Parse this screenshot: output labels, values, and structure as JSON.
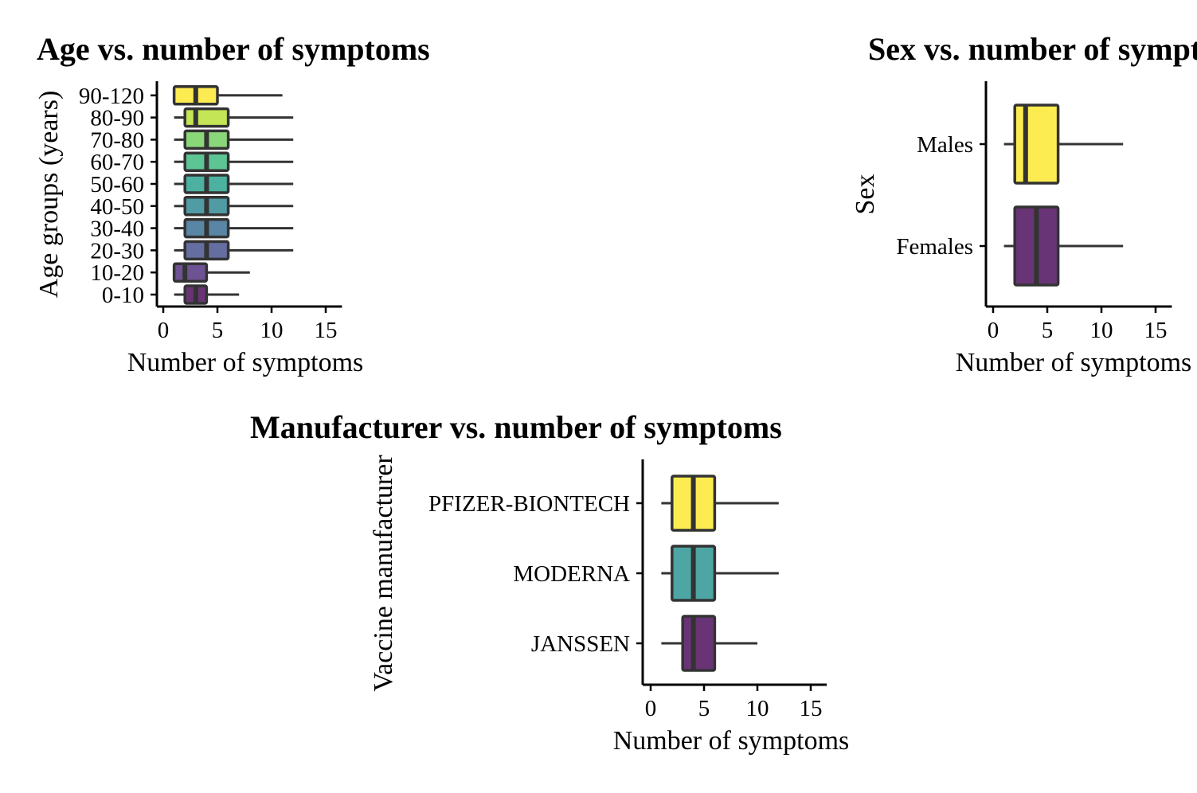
{
  "chart_data": [
    {
      "type": "boxplot",
      "orientation": "horizontal",
      "title": "Age vs. number of symptoms",
      "xlabel": "Number of symptoms",
      "ylabel": "Age groups (years)",
      "xlim": [
        -0.8,
        16.5
      ],
      "xticks": [
        0,
        5,
        10,
        15
      ],
      "categories": [
        "0-10",
        "10-20",
        "20-30",
        "30-40",
        "40-50",
        "50-60",
        "60-70",
        "70-80",
        "80-90",
        "90-120"
      ],
      "boxes": [
        {
          "min": 1,
          "q1": 2,
          "median": 3,
          "q3": 4,
          "max": 7,
          "fill": "#440154"
        },
        {
          "min": 1,
          "q1": 1,
          "median": 2,
          "q3": 4,
          "max": 8,
          "fill": "#482878"
        },
        {
          "min": 1,
          "q1": 2,
          "median": 4,
          "q3": 6,
          "max": 12,
          "fill": "#3E4A89"
        },
        {
          "min": 1,
          "q1": 2,
          "median": 4,
          "q3": 6,
          "max": 12,
          "fill": "#31688E"
        },
        {
          "min": 1,
          "q1": 2,
          "median": 4,
          "q3": 6,
          "max": 12,
          "fill": "#26828E"
        },
        {
          "min": 1,
          "q1": 2,
          "median": 4,
          "q3": 6,
          "max": 12,
          "fill": "#1F9E89"
        },
        {
          "min": 1,
          "q1": 2,
          "median": 4,
          "q3": 6,
          "max": 12,
          "fill": "#35B779"
        },
        {
          "min": 1,
          "q1": 2,
          "median": 4,
          "q3": 6,
          "max": 12,
          "fill": "#6DCD59"
        },
        {
          "min": 1,
          "q1": 2,
          "median": 3,
          "q3": 6,
          "max": 12,
          "fill": "#B4DE2C"
        },
        {
          "min": 1,
          "q1": 1,
          "median": 3,
          "q3": 5,
          "max": 11,
          "fill": "#FDE725"
        }
      ],
      "fill_opacity": 0.8
    },
    {
      "type": "boxplot",
      "orientation": "horizontal",
      "title": "Sex vs. number of symptoms",
      "xlabel": "Number of symptoms",
      "ylabel": "Sex",
      "xlim": [
        -0.8,
        16.5
      ],
      "xticks": [
        0,
        5,
        10,
        15
      ],
      "categories": [
        "Females",
        "Males"
      ],
      "boxes": [
        {
          "min": 1,
          "q1": 2,
          "median": 4,
          "q3": 6,
          "max": 12,
          "fill": "#440154"
        },
        {
          "min": 1,
          "q1": 2,
          "median": 3,
          "q3": 6,
          "max": 12,
          "fill": "#FDE725"
        }
      ],
      "fill_opacity": 0.8
    },
    {
      "type": "boxplot",
      "orientation": "horizontal",
      "title": "Manufacturer vs. number of symptoms",
      "xlabel": "Number of symptoms",
      "ylabel": "Vaccine manufacturer",
      "xlim": [
        -0.8,
        16.5
      ],
      "xticks": [
        0,
        5,
        10,
        15
      ],
      "categories": [
        "JANSSEN",
        "MODERNA",
        "PFIZER-BIONTECH"
      ],
      "boxes": [
        {
          "min": 1,
          "q1": 3,
          "median": 4,
          "q3": 6,
          "max": 10,
          "fill": "#440154"
        },
        {
          "min": 1,
          "q1": 2,
          "median": 4,
          "q3": 6,
          "max": 12,
          "fill": "#21908C"
        },
        {
          "min": 1,
          "q1": 2,
          "median": 4,
          "q3": 6,
          "max": 12,
          "fill": "#FDE725"
        }
      ],
      "fill_opacity": 0.8
    }
  ],
  "colors": {
    "box_stroke": "#333333",
    "axis": "#000000"
  }
}
